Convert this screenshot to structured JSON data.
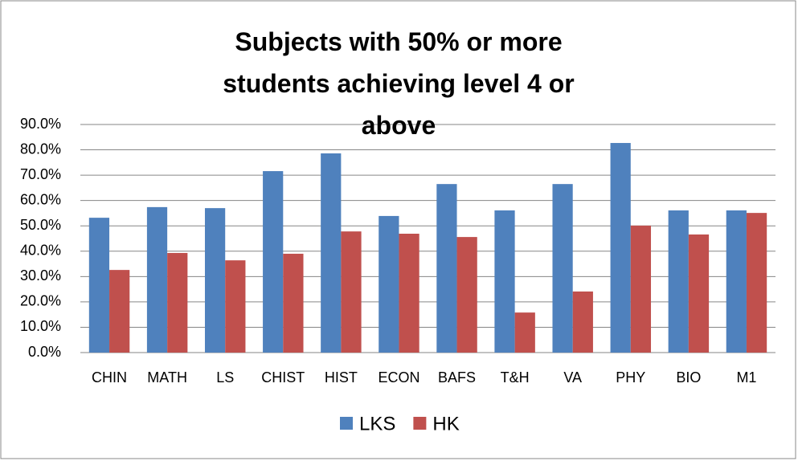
{
  "chart_data": {
    "type": "bar",
    "title": "Subjects with 50% or more students achieving level 4 or above",
    "categories": [
      "CHIN",
      "MATH",
      "LS",
      "CHIST",
      "HIST",
      "ECON",
      "BAFS",
      "T&H",
      "VA",
      "PHY",
      "BIO",
      "M1"
    ],
    "series": [
      {
        "name": "LKS",
        "color": "#4f81bd",
        "values": [
          53.2,
          57.4,
          57.0,
          71.6,
          78.6,
          53.9,
          66.5,
          56.1,
          66.5,
          82.7,
          56.1,
          56.1
        ]
      },
      {
        "name": "HK",
        "color": "#c0504d",
        "values": [
          32.6,
          39.3,
          36.4,
          39.0,
          47.8,
          46.9,
          45.6,
          15.8,
          24.1,
          50.1,
          46.6,
          55.1
        ]
      }
    ],
    "ylim": [
      0,
      90
    ],
    "yticks": [
      {
        "value": 0,
        "label": "0.0%"
      },
      {
        "value": 10,
        "label": "10.0%"
      },
      {
        "value": 20,
        "label": "20.0%"
      },
      {
        "value": 30,
        "label": "30.0%"
      },
      {
        "value": 40,
        "label": "40.0%"
      },
      {
        "value": 50,
        "label": "50.0%"
      },
      {
        "value": 60,
        "label": "60.0%"
      },
      {
        "value": 70,
        "label": "70.0%"
      },
      {
        "value": 80,
        "label": "80.0%"
      },
      {
        "value": 90,
        "label": "90.0%"
      }
    ],
    "grid": true,
    "legend": "bottom"
  }
}
